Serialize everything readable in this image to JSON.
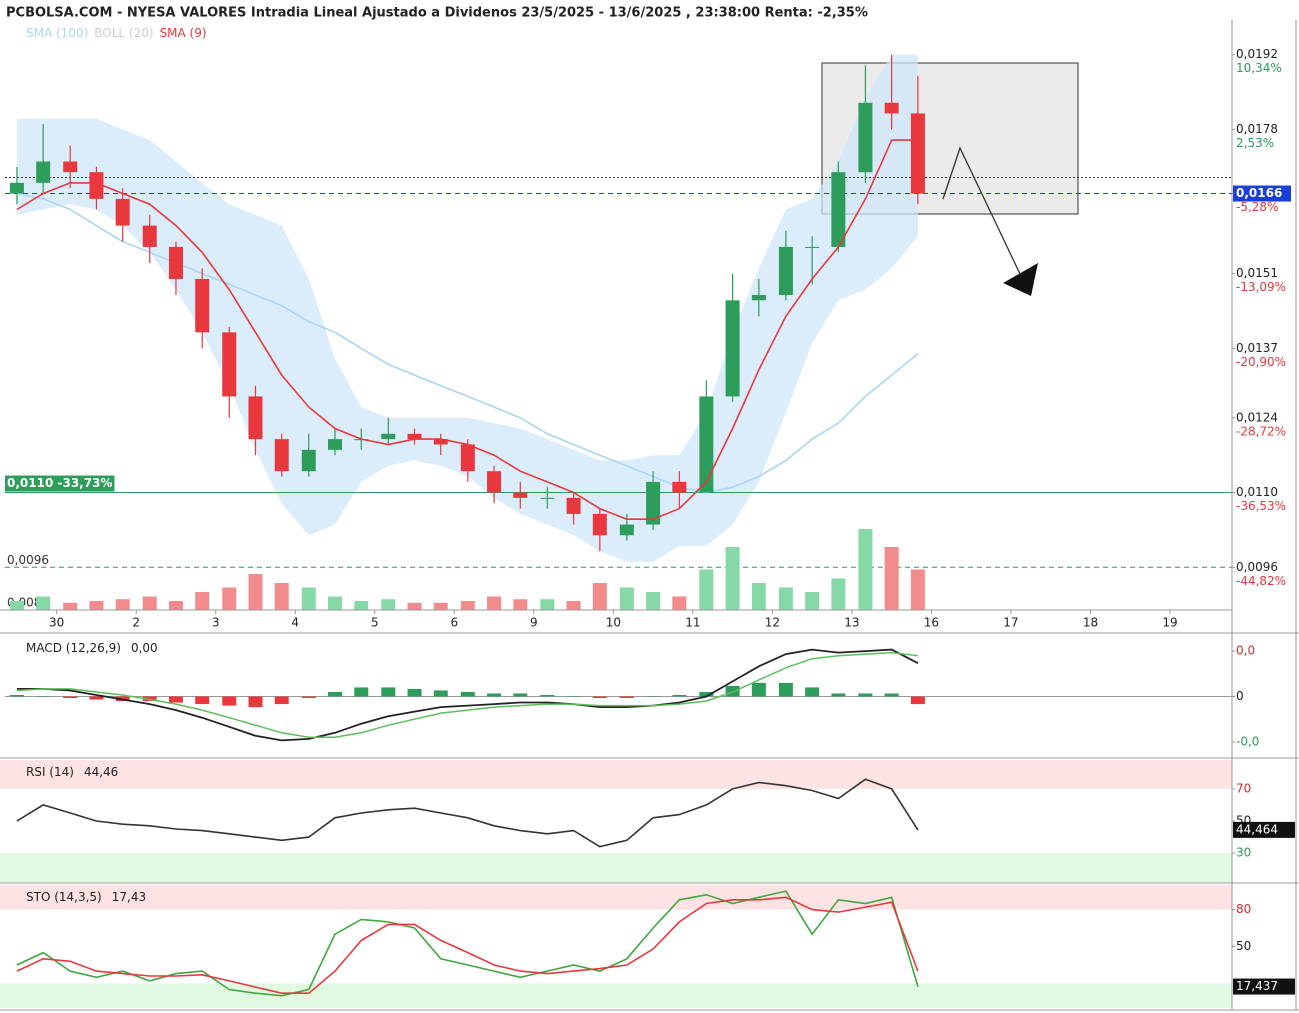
{
  "chart_data": [
    {
      "type": "candlestick",
      "title": "PCBOLSA.COM - NYESA VALORES Intradia Lineal Ajustado a Dividenos 23/5/2025 - 13/6/2025 , 23:38:00 Renta: -2,35%",
      "x": [
        -0.5,
        -0.17,
        0.17,
        0.5,
        0.83,
        1.17,
        1.5,
        1.83,
        2.17,
        2.5,
        2.83,
        3.17,
        3.5,
        3.83,
        4.17,
        4.5,
        4.83,
        5.17,
        5.5,
        5.83,
        6.17,
        6.5,
        6.83,
        7.17,
        7.5,
        7.83,
        8.17,
        8.5,
        8.83,
        9.17,
        9.5,
        9.83,
        10.17,
        10.5,
        10.83
      ],
      "open": [
        0.0166,
        0.0168,
        0.0172,
        0.017,
        0.0165,
        0.016,
        0.0156,
        0.015,
        0.014,
        0.0128,
        0.012,
        0.0114,
        0.0118,
        0.012,
        0.012,
        0.0121,
        0.012,
        0.0119,
        0.0114,
        0.011,
        0.0109,
        0.0109,
        0.0106,
        0.0102,
        0.0104,
        0.0112,
        0.011,
        0.0128,
        0.0146,
        0.0147,
        0.0156,
        0.0156,
        0.017,
        0.0183,
        0.0181
      ],
      "high": [
        0.0171,
        0.0179,
        0.0175,
        0.0171,
        0.0167,
        0.0162,
        0.0157,
        0.0152,
        0.0141,
        0.013,
        0.0121,
        0.0121,
        0.0122,
        0.0122,
        0.0124,
        0.0122,
        0.0121,
        0.012,
        0.0115,
        0.0112,
        0.0111,
        0.011,
        0.0107,
        0.0106,
        0.0114,
        0.0114,
        0.0131,
        0.0151,
        0.015,
        0.0159,
        0.0158,
        0.0172,
        0.019,
        0.0192,
        0.0188
      ],
      "low": [
        0.0164,
        0.0166,
        0.0167,
        0.0163,
        0.0157,
        0.0153,
        0.0147,
        0.0137,
        0.0124,
        0.0117,
        0.0113,
        0.0113,
        0.0117,
        0.0118,
        0.0119,
        0.0119,
        0.0117,
        0.0112,
        0.0108,
        0.0107,
        0.0107,
        0.0104,
        0.0099,
        0.0101,
        0.0103,
        0.0107,
        0.011,
        0.0127,
        0.0143,
        0.0146,
        0.0149,
        0.0155,
        0.0168,
        0.0178,
        0.0164
      ],
      "close": [
        0.0168,
        0.0172,
        0.017,
        0.0165,
        0.016,
        0.0156,
        0.015,
        0.014,
        0.0128,
        0.012,
        0.0114,
        0.0118,
        0.012,
        0.012,
        0.0121,
        0.012,
        0.0119,
        0.0114,
        0.011,
        0.0109,
        0.0109,
        0.0106,
        0.0102,
        0.0104,
        0.0112,
        0.011,
        0.0128,
        0.0146,
        0.0147,
        0.0156,
        0.0156,
        0.017,
        0.0183,
        0.0181,
        0.0166
      ],
      "volume": [
        10,
        15,
        8,
        10,
        12,
        15,
        10,
        20,
        25,
        40,
        30,
        25,
        15,
        10,
        12,
        8,
        8,
        10,
        15,
        12,
        12,
        10,
        30,
        25,
        20,
        15,
        45,
        70,
        30,
        25,
        20,
        35,
        90,
        70,
        45
      ],
      "vlim": [
        0,
        100
      ],
      "colors": {
        "up": "#2e9c5a",
        "down": "#e8383d",
        "volume_up": "#86d9a6",
        "volume_down": "#f28b8b"
      },
      "series": [
        {
          "name": "SMA (100)",
          "color": "#a9d6f2",
          "values": [
            0.0166,
            0.0165,
            0.0163,
            0.016,
            0.0157,
            0.0155,
            0.0153,
            0.0151,
            0.0149,
            0.0147,
            0.0145,
            0.0142,
            0.014,
            0.0137,
            0.0134,
            0.0132,
            0.013,
            0.0128,
            0.0126,
            0.0124,
            0.0121,
            0.0119,
            0.0117,
            0.0115,
            0.0113,
            0.0111,
            0.011,
            0.0111,
            0.0113,
            0.0116,
            0.012,
            0.0123,
            0.0128,
            0.0132,
            0.0136
          ]
        },
        {
          "name": "BOLL (20)",
          "color": "#cfe7f8",
          "upper": [
            0.018,
            0.018,
            0.018,
            0.018,
            0.0178,
            0.0176,
            0.0172,
            0.0168,
            0.0164,
            0.0162,
            0.016,
            0.015,
            0.0135,
            0.0126,
            0.0124,
            0.0124,
            0.0124,
            0.0124,
            0.0123,
            0.0122,
            0.012,
            0.0118,
            0.0116,
            0.0116,
            0.0117,
            0.0117,
            0.0125,
            0.014,
            0.0152,
            0.0163,
            0.0165,
            0.0172,
            0.0184,
            0.0192,
            0.0192
          ],
          "lower": [
            0.0162,
            0.0163,
            0.0164,
            0.0163,
            0.016,
            0.0155,
            0.0148,
            0.014,
            0.013,
            0.0118,
            0.0108,
            0.0102,
            0.0104,
            0.0112,
            0.0115,
            0.0116,
            0.0115,
            0.0113,
            0.0109,
            0.0106,
            0.0104,
            0.0102,
            0.0099,
            0.0097,
            0.0097,
            0.01,
            0.01,
            0.0104,
            0.0112,
            0.0125,
            0.0138,
            0.0146,
            0.0148,
            0.0152,
            0.0158
          ]
        },
        {
          "name": "SMA (9)",
          "color": "#e8383d",
          "values": [
            0.0163,
            0.0166,
            0.0168,
            0.0168,
            0.0166,
            0.0164,
            0.016,
            0.0155,
            0.0148,
            0.014,
            0.0132,
            0.0126,
            0.0122,
            0.012,
            0.0119,
            0.012,
            0.012,
            0.0119,
            0.0117,
            0.0114,
            0.0112,
            0.011,
            0.0107,
            0.0105,
            0.0105,
            0.0107,
            0.0112,
            0.0122,
            0.0133,
            0.0143,
            0.015,
            0.0156,
            0.0165,
            0.0176,
            0.0176
          ]
        }
      ],
      "xlim": [
        -0.65,
        14.78
      ],
      "ylim": [
        0.0088,
        0.01985
      ],
      "xticks": [
        {
          "value": 0,
          "label": "30"
        },
        {
          "value": 1,
          "label": "2"
        },
        {
          "value": 2,
          "label": "3"
        },
        {
          "value": 3,
          "label": "4"
        },
        {
          "value": 4,
          "label": "5"
        },
        {
          "value": 5,
          "label": "6"
        },
        {
          "value": 6,
          "label": "9"
        },
        {
          "value": 7,
          "label": "10"
        },
        {
          "value": 8,
          "label": "11"
        },
        {
          "value": 9,
          "label": "12"
        },
        {
          "value": 10,
          "label": "13"
        },
        {
          "value": 11,
          "label": "16"
        },
        {
          "value": 12,
          "label": "17"
        },
        {
          "value": 13,
          "label": "18"
        },
        {
          "value": 14,
          "label": "19"
        }
      ],
      "yticks": [
        {
          "value": 0.0192,
          "label": "0,0192",
          "change": "10,34%"
        },
        {
          "value": 0.0178,
          "label": "0,0178",
          "change": "2,53%"
        },
        {
          "value": 0.0166,
          "label": "0,0166",
          "change": "-5,28%"
        },
        {
          "value": 0.0151,
          "label": "0,0151",
          "change": "-13,09%"
        },
        {
          "value": 0.0137,
          "label": "0,0137",
          "change": "-20,90%"
        },
        {
          "value": 0.0124,
          "label": "0,0124",
          "change": "-28,72%"
        },
        {
          "value": 0.011,
          "label": "0,0110",
          "change": "-36,53%"
        },
        {
          "value": 0.0096,
          "label": "0,0096",
          "change": "-44,82%"
        }
      ],
      "price_line": {
        "value": 0.0166,
        "color": "#1a3fd6"
      },
      "levels": [
        {
          "value": 0.0169,
          "color": "#333333",
          "style": "dotted"
        },
        {
          "value": 0.011,
          "color": "#2e9c5a",
          "style": "solid",
          "label": "0,0110 -33,73%",
          "label_style": "box"
        },
        {
          "value": 0.0096,
          "color": "#2e9c5a",
          "style": "dashed",
          "label": "0,0096",
          "label_style": "text"
        },
        {
          "value": 0.0088,
          "color": "#333333",
          "style": "none",
          "label": "0,0088",
          "label_style": "text"
        }
      ]
    },
    {
      "type": "macd",
      "label": "MACD (12,26,9)",
      "value_label": "0,00",
      "x": [
        -0.5,
        -0.17,
        0.17,
        0.5,
        0.83,
        1.17,
        1.5,
        1.83,
        2.17,
        2.5,
        2.83,
        3.17,
        3.5,
        3.83,
        4.17,
        4.5,
        4.83,
        5.17,
        5.5,
        5.83,
        6.17,
        6.5,
        6.83,
        7.17,
        7.5,
        7.83,
        8.17,
        8.5,
        8.83,
        9.17,
        9.5,
        9.83,
        10.17,
        10.5,
        10.83
      ],
      "series": [
        {
          "color": "#222222",
          "values": [
            5e-05,
            5e-05,
            4e-05,
            1e-05,
            -2e-05,
            -5e-05,
            -9e-05,
            -0.00014,
            -0.0002,
            -0.00026,
            -0.00029,
            -0.00028,
            -0.00024,
            -0.00018,
            -0.00013,
            -0.0001,
            -7e-05,
            -6e-05,
            -5e-05,
            -4e-05,
            -4e-05,
            -5e-05,
            -7e-05,
            -7e-05,
            -6e-05,
            -4e-05,
            0,
            0.0001,
            0.0002,
            0.00028,
            0.00031,
            0.00029,
            0.0003,
            0.00031,
            0.00022
          ]
        },
        {
          "color": "#5cbf5c",
          "values": [
            4e-05,
            5e-05,
            5e-05,
            3e-05,
            1e-05,
            -2e-05,
            -5e-05,
            -9e-05,
            -0.00014,
            -0.00019,
            -0.00024,
            -0.00027,
            -0.00027,
            -0.00024,
            -0.00019,
            -0.00015,
            -0.00011,
            -9e-05,
            -7e-05,
            -6e-05,
            -5e-05,
            -5e-05,
            -6e-05,
            -6e-05,
            -6e-05,
            -5e-05,
            -3e-05,
            3e-05,
            0.00011,
            0.00019,
            0.00025,
            0.00027,
            0.00028,
            0.00029,
            0.00027
          ]
        }
      ],
      "histogram": [
        1e-05,
        0,
        -1e-05,
        -2e-05,
        -3e-05,
        -3e-05,
        -4e-05,
        -5e-05,
        -6e-05,
        -7e-05,
        -5e-05,
        -1e-05,
        3e-05,
        6e-05,
        6e-05,
        5e-05,
        4e-05,
        3e-05,
        2e-05,
        2e-05,
        1e-05,
        0,
        -1e-05,
        -1e-05,
        0,
        1e-05,
        3e-05,
        7e-05,
        9e-05,
        9e-05,
        6e-05,
        2e-05,
        2e-05,
        2e-05,
        -5e-05
      ],
      "hist_colors": [
        "#2e9c5a",
        "#e8383d"
      ],
      "baseline": 0,
      "xlim": [
        -0.65,
        14.78
      ],
      "ylim": [
        -0.0004,
        0.0004
      ],
      "yticks": [
        {
          "value": 0.0003,
          "label": "0,0"
        },
        0,
        {
          "value": -0.0003,
          "label": "-0,0"
        }
      ],
      "ytick_colors": [
        "#d62b2b",
        "#222222",
        "#2a9d5c"
      ]
    },
    {
      "type": "line",
      "label": "RSI (14)",
      "value_label": "44,46",
      "last_label": "44,464",
      "x": [
        -0.5,
        -0.17,
        0.17,
        0.5,
        0.83,
        1.17,
        1.5,
        1.83,
        2.17,
        2.5,
        2.83,
        3.17,
        3.5,
        3.83,
        4.17,
        4.5,
        4.83,
        5.17,
        5.5,
        5.83,
        6.17,
        6.5,
        6.83,
        7.17,
        7.5,
        7.83,
        8.17,
        8.5,
        8.83,
        9.17,
        9.5,
        9.83,
        10.17,
        10.5,
        10.83
      ],
      "series": [
        {
          "color": "#333333",
          "values": [
            50,
            60,
            55,
            50,
            48,
            47,
            45,
            44,
            42,
            40,
            38,
            40,
            52,
            55,
            57,
            58,
            55,
            52,
            47,
            44,
            42,
            44,
            34,
            38,
            52,
            54,
            60,
            70,
            74,
            72,
            69,
            64,
            76,
            70,
            44.464
          ]
        }
      ],
      "zones": [
        {
          "from": 70,
          "to": 88,
          "color": "#fde3e3"
        },
        {
          "from": 12,
          "to": 30,
          "color": "#e1f8e1"
        }
      ],
      "xlim": [
        -0.65,
        14.78
      ],
      "ylim": [
        12,
        88
      ],
      "yticks": [
        70,
        50,
        30
      ],
      "ytick_colors": [
        "#d62b2b",
        "#222222",
        "#2a9d5c"
      ]
    },
    {
      "type": "line",
      "label": "STO (14,3,5)",
      "value_label": "17,43",
      "last_label": "17,437",
      "x": [
        -0.5,
        -0.17,
        0.17,
        0.5,
        0.83,
        1.17,
        1.5,
        1.83,
        2.17,
        2.5,
        2.83,
        3.17,
        3.5,
        3.83,
        4.17,
        4.5,
        4.83,
        5.17,
        5.5,
        5.83,
        6.17,
        6.5,
        6.83,
        7.17,
        7.5,
        7.83,
        8.17,
        8.5,
        8.83,
        9.17,
        9.5,
        9.83,
        10.17,
        10.5,
        10.83
      ],
      "series": [
        {
          "color": "#3fa83f",
          "values": [
            35,
            45,
            30,
            25,
            30,
            22,
            28,
            30,
            15,
            12,
            10,
            15,
            60,
            72,
            70,
            65,
            40,
            35,
            30,
            25,
            30,
            35,
            30,
            40,
            65,
            88,
            92,
            85,
            90,
            95,
            60,
            88,
            85,
            90,
            17.437
          ]
        },
        {
          "color": "#e8383d",
          "values": [
            30,
            40,
            38,
            30,
            28,
            26,
            26,
            27,
            22,
            17,
            12,
            12,
            30,
            55,
            68,
            68,
            55,
            45,
            35,
            30,
            28,
            30,
            32,
            35,
            48,
            70,
            85,
            88,
            88,
            90,
            80,
            78,
            82,
            86,
            30
          ]
        }
      ],
      "zones": [
        {
          "from": 80,
          "to": 100,
          "color": "#fde3e3"
        },
        {
          "from": 0,
          "to": 20,
          "color": "#e1f8e1"
        }
      ],
      "xlim": [
        -0.65,
        14.78
      ],
      "ylim": [
        0,
        100
      ],
      "yticks": [
        80,
        50
      ],
      "ytick_colors": [
        "#d62b2b",
        "#222222"
      ]
    }
  ]
}
